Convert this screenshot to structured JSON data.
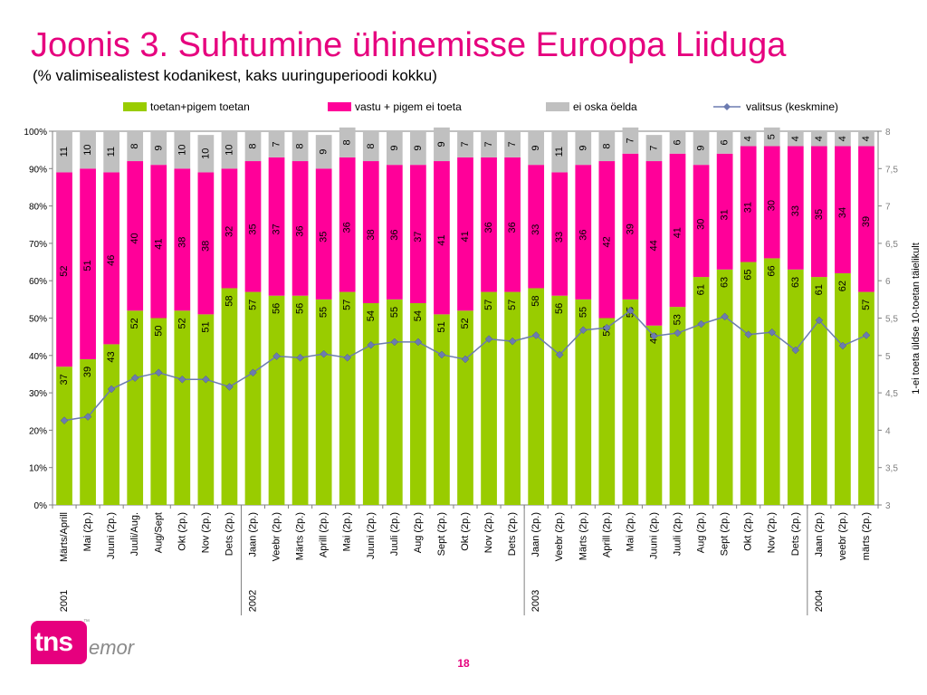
{
  "title": "Joonis 3. Suhtumine ühinemisse Euroopa Liiduga",
  "subtitle": "(% valimisealistest kodanikest, kaks uuringuperioodi kokku)",
  "page_number": "18",
  "logo": {
    "text_left": "tns",
    "text_right": "emor",
    "tm": "™"
  },
  "colors": {
    "support": "#99cc00",
    "against": "#ff0099",
    "dontknow": "#c0c0c0",
    "mean": "#6c7bb0",
    "accent": "#e6007e"
  },
  "chart_data": {
    "type": "bar",
    "stacked": true,
    "categories": [
      "Märts/Aprill",
      "Mai (2p.)",
      "Juuni (2p.)",
      "Juuli/Aug.",
      "Aug/Sept",
      "Okt (2p.)",
      "Nov (2p.)",
      "Dets (2p.)",
      "Jaan (2p.)",
      "Veebr (2p.)",
      "Märts (2p.)",
      "Aprill (2p.)",
      "Mai (2p.)",
      "Juuni (2p.)",
      "Juuli (2p.)",
      "Aug (2p.)",
      "Sept (2p.)",
      "Okt (2p.)",
      "Nov (2p.)",
      "Dets (2p.)",
      "Jaan (2p.)",
      "Veebr (2p.)",
      "Märts (2p.)",
      "Aprill (2p.)",
      "Mai (2p.)",
      "Juuni (2p.)",
      "Juuli (2p.)",
      "Aug (2p.)",
      "Sept (2p.)",
      "Okt (2p.)",
      "Nov (2p.)",
      "Dets (2p.)",
      "Jaan (2p.)",
      "veebr (2p.)",
      "märts (2p.)"
    ],
    "years": [
      {
        "label": "2001",
        "index": 0
      },
      {
        "label": "2002",
        "index": 8
      },
      {
        "label": "2003",
        "index": 20
      },
      {
        "label": "2004",
        "index": 32
      }
    ],
    "series": [
      {
        "name": "toetan+pigem toetan",
        "values": [
          37,
          39,
          43,
          52,
          50,
          52,
          51,
          58,
          57,
          56,
          56,
          55,
          57,
          54,
          55,
          54,
          51,
          52,
          57,
          57,
          58,
          56,
          55,
          50,
          55,
          48,
          53,
          61,
          63,
          65,
          66,
          63,
          61,
          62,
          57
        ]
      },
      {
        "name": "vastu + pigem ei toeta",
        "values": [
          52,
          51,
          46,
          40,
          41,
          38,
          38,
          32,
          35,
          37,
          36,
          35,
          36,
          38,
          36,
          37,
          41,
          41,
          36,
          36,
          33,
          33,
          36,
          42,
          39,
          44,
          41,
          30,
          31,
          31,
          30,
          33,
          35,
          34,
          39
        ]
      },
      {
        "name": "ei oska öelda",
        "values": [
          11,
          10,
          11,
          8,
          9,
          10,
          10,
          10,
          8,
          7,
          8,
          9,
          8,
          8,
          9,
          9,
          9,
          7,
          7,
          7,
          9,
          11,
          9,
          8,
          7,
          7,
          6,
          9,
          6,
          4,
          5,
          4,
          4,
          4,
          4
        ]
      }
    ],
    "line_series": {
      "name": "valitsus (keskmine)",
      "axis": "right",
      "values": [
        4.13,
        4.18,
        4.55,
        4.7,
        4.77,
        4.68,
        4.68,
        4.58,
        4.77,
        4.99,
        4.97,
        5.02,
        4.97,
        5.14,
        5.18,
        5.18,
        5.01,
        4.95,
        5.22,
        5.19,
        5.27,
        5.01,
        5.34,
        5.37,
        5.6,
        5.26,
        5.3,
        5.42,
        5.52,
        5.28,
        5.31,
        5.07,
        5.47,
        5.13,
        5.27
      ]
    },
    "y_left": {
      "min": 0,
      "max": 100,
      "ticks": [
        "0%",
        "10%",
        "20%",
        "30%",
        "40%",
        "50%",
        "60%",
        "70%",
        "80%",
        "90%",
        "100%"
      ]
    },
    "y_right": {
      "min": 3,
      "max": 8,
      "ticks": [
        "3",
        "3,5",
        "4",
        "4,5",
        "5",
        "5,5",
        "6",
        "6,5",
        "7",
        "7,5",
        "8"
      ],
      "label": "1-ei toeta üldse  10-toetan täielikult"
    },
    "legend_position": "top",
    "grid": false
  }
}
